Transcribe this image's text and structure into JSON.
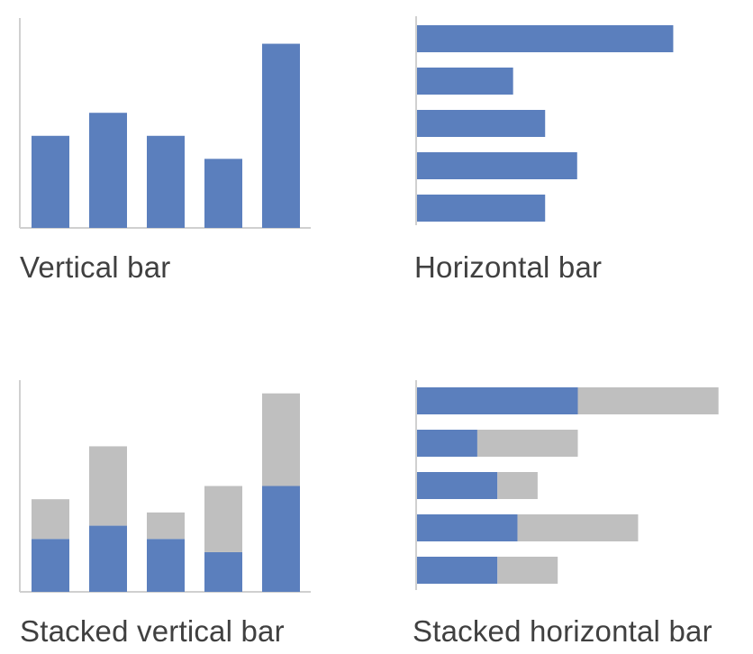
{
  "colors": {
    "primary": "#5b7fbd",
    "secondary": "#bfbfbf",
    "axis": "#d0d0d0"
  },
  "chart_data": [
    {
      "type": "bar",
      "orientation": "vertical",
      "title": "",
      "caption": "Vertical bar",
      "values": [
        4,
        5,
        4,
        3,
        8
      ],
      "ylim": [
        0,
        9
      ],
      "grid": false
    },
    {
      "type": "bar",
      "orientation": "horizontal",
      "title": "",
      "caption": "Horizontal bar",
      "values": [
        8,
        3,
        4,
        5,
        4
      ],
      "xlim": [
        0,
        9
      ],
      "grid": false
    },
    {
      "type": "bar",
      "orientation": "vertical",
      "stacked": true,
      "title": "",
      "caption": "Stacked vertical bar",
      "series": [
        {
          "values": [
            2,
            2.5,
            2,
            1.5,
            4
          ]
        },
        {
          "values": [
            1.5,
            3,
            1,
            2.5,
            3.5
          ]
        }
      ],
      "ylim": [
        0,
        8
      ],
      "grid": false
    },
    {
      "type": "bar",
      "orientation": "horizontal",
      "stacked": true,
      "title": "",
      "caption": "Stacked horizontal bar",
      "series": [
        {
          "values": [
            4,
            1.5,
            2,
            2.5,
            2
          ]
        },
        {
          "values": [
            3.5,
            2.5,
            1,
            3,
            1.5
          ]
        }
      ],
      "xlim": [
        0,
        8
      ],
      "grid": false
    }
  ]
}
